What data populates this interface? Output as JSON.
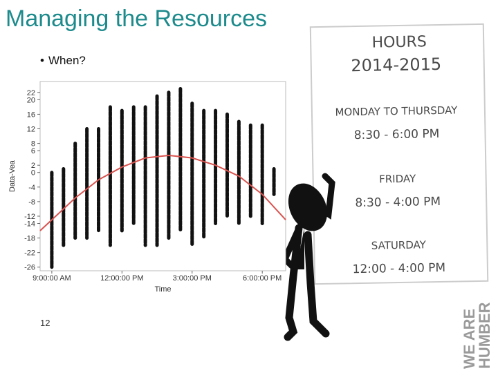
{
  "slide": {
    "title": "Managing the Resources",
    "bullet": "When?",
    "page_number": "12"
  },
  "sign": {
    "heading": "HOURS",
    "year": "2014-2015",
    "days_1": "MONDAY TO THURSDAY",
    "hours_1": "8:30 - 6:00 PM",
    "days_2": "FRIDAY",
    "hours_2": "8:30 - 4:00 PM",
    "days_3": "SATURDAY",
    "hours_3": "12:00 - 4:00 PM"
  },
  "logo": [
    "WE ARE",
    "HUMBER"
  ],
  "chart_data": {
    "type": "range",
    "x_label": "Time",
    "y_label": "Data-Vea",
    "x": [
      9,
      9.5,
      10,
      10.5,
      11,
      11.5,
      12,
      12.5,
      13,
      13.5,
      14,
      14.5,
      15,
      15.5,
      16,
      16.5,
      17,
      17.5,
      18,
      18.5
    ],
    "high": [
      0,
      1,
      8,
      12,
      12,
      18,
      17,
      18,
      18,
      21,
      22,
      23,
      19,
      17,
      17,
      16,
      14,
      13,
      13,
      1
    ],
    "low": [
      -26,
      -20,
      -18,
      -18,
      -16,
      -20,
      -16,
      -14,
      -20,
      -20,
      -18,
      -16,
      -20,
      -18,
      -14,
      -12,
      -14,
      -12,
      -14,
      -6
    ],
    "color": "#111111",
    "curve_x": [
      8.5,
      9,
      10,
      11,
      12,
      13,
      14,
      15,
      16,
      17,
      18,
      19
    ],
    "curve_y": [
      -16,
      -13,
      -7,
      -2,
      1.5,
      4,
      4.7,
      4,
      2,
      -1,
      -6,
      -13
    ],
    "curve_color": "#d9534f",
    "xlim": [
      8.5,
      19
    ],
    "ylim": [
      -27,
      25
    ],
    "xticks": [
      {
        "value": 9,
        "label": "9:00:00 AM"
      },
      {
        "value": 12,
        "label": "12:00:00 PM"
      },
      {
        "value": 15,
        "label": "3:00:00 PM"
      },
      {
        "value": 18,
        "label": "6:00:00 PM"
      }
    ],
    "yticks": [
      22,
      20,
      16,
      12,
      8,
      6,
      2,
      0,
      -4,
      -8,
      -12,
      -14,
      -18,
      -22,
      -26
    ]
  }
}
